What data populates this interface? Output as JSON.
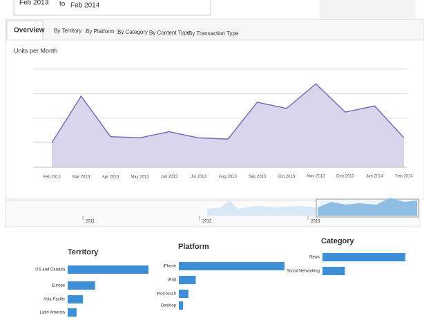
{
  "date_range": {
    "from": "Feb 2013",
    "separator": "to",
    "to": "Feb 2014"
  },
  "tabs": [
    "Overview",
    "By Territory",
    "By Platform",
    "By Category",
    "By Content Type",
    "By Transaction Type"
  ],
  "timeline": {
    "labels": [
      "2011",
      "2012",
      "2013"
    ]
  },
  "chart_data": [
    {
      "type": "area",
      "title": "Units per Month",
      "color": "#7b6cb8",
      "fill": "#d9d5ec",
      "grid": true,
      "categories": [
        "Feb 2013",
        "Mar 2013",
        "Apr 2013",
        "May 2013",
        "Jun 2013",
        "Jul 2013",
        "Aug 2013",
        "Sep 2013",
        "Oct 2013",
        "Nov 2013",
        "Dec 2013",
        "Jan 2014",
        "Feb 2014"
      ],
      "values": [
        1.0,
        2.9,
        1.25,
        1.2,
        1.45,
        1.2,
        1.15,
        2.65,
        2.4,
        3.4,
        2.25,
        2.5,
        1.2
      ],
      "ylim": [
        0,
        4
      ]
    },
    {
      "type": "bar",
      "title": "Territory",
      "color": "#3d8fd6",
      "categories": [
        "US and Canada",
        "Europe",
        "Asia Pacific",
        "Latin America"
      ],
      "values": [
        100,
        34,
        19,
        11
      ],
      "xlim": [
        0,
        100
      ]
    },
    {
      "type": "bar",
      "title": "Platform",
      "color": "#3d8fd6",
      "categories": [
        "iPhone",
        "iPad",
        "iPod touch",
        "Desktop"
      ],
      "values": [
        100,
        16,
        9,
        4
      ],
      "xlim": [
        0,
        100
      ]
    },
    {
      "type": "bar",
      "title": "Category",
      "color": "#3d8fd6",
      "categories": [
        "News",
        "Social Networking"
      ],
      "values": [
        100,
        27
      ],
      "xlim": [
        0,
        100
      ]
    }
  ]
}
